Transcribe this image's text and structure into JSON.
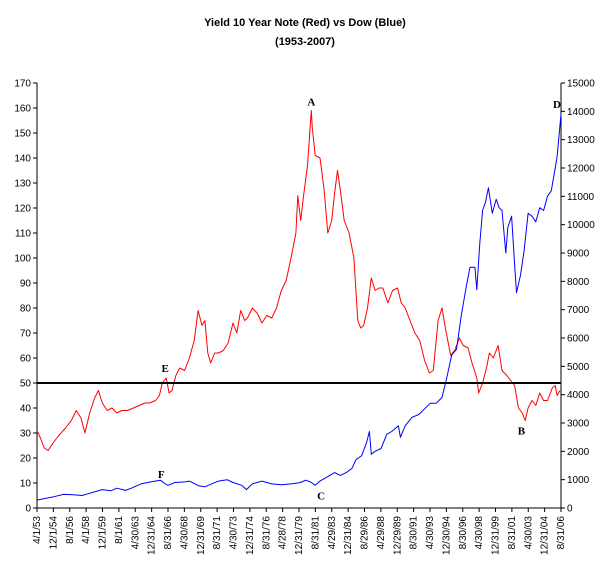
{
  "chart_data": {
    "type": "line",
    "title": "Yield 10 Year Note (Red) vs Dow (Blue)",
    "subtitle": "(1953-2007)",
    "grid": false,
    "legend": "none",
    "x_tick_labels": [
      "4/1/53",
      "12/1/54",
      "8/1/56",
      "4/1/58",
      "12/1/59",
      "8/1/61",
      "4/30/63",
      "12/31/64",
      "8/31/66",
      "4/30/68",
      "12/31/69",
      "8/31/71",
      "4/30/73",
      "12/31/74",
      "8/31/76",
      "4/28/78",
      "12/31/79",
      "8/31/81",
      "4/29/83",
      "12/31/84",
      "8/29/86",
      "4/29/88",
      "12/29/89",
      "8/30/91",
      "4/30/93",
      "12/30/94",
      "8/30/96",
      "4/30/98",
      "12/31/99",
      "8/31/01",
      "4/30/03",
      "12/31/04",
      "8/31/06"
    ],
    "y_left": {
      "min": 0,
      "max": 170,
      "step": 10
    },
    "y_right": {
      "min": 0,
      "max": 15000,
      "step": 1000
    },
    "reference_line": {
      "axis": "left",
      "value": 50,
      "color": "#000000"
    },
    "series": [
      {
        "color": "#ff0000",
        "axis": "left",
        "x": [
          1953.25,
          1953.6,
          1954.0,
          1954.4,
          1954.9,
          1955.5,
          1956.2,
          1956.8,
          1957.3,
          1957.8,
          1958.2,
          1958.7,
          1959.2,
          1959.6,
          1960.0,
          1960.5,
          1961.0,
          1961.5,
          1962.0,
          1962.6,
          1963.2,
          1963.8,
          1964.4,
          1964.9,
          1965.5,
          1965.9,
          1966.2,
          1966.6,
          1966.9,
          1967.2,
          1967.6,
          1968.0,
          1968.5,
          1969.0,
          1969.5,
          1969.9,
          1970.3,
          1970.6,
          1970.9,
          1971.2,
          1971.6,
          1972.0,
          1972.5,
          1973.0,
          1973.5,
          1973.9,
          1974.3,
          1974.7,
          1975.0,
          1975.5,
          1976.0,
          1976.5,
          1977.0,
          1977.5,
          1978.0,
          1978.5,
          1979.0,
          1979.5,
          1980.0,
          1980.2,
          1980.5,
          1980.8,
          1981.2,
          1981.6,
          1981.7,
          1982.0,
          1982.5,
          1982.9,
          1983.3,
          1983.7,
          1984.0,
          1984.3,
          1984.6,
          1985.0,
          1985.5,
          1986.0,
          1986.4,
          1986.7,
          1987.0,
          1987.4,
          1987.8,
          1988.2,
          1988.6,
          1989.0,
          1989.5,
          1990.0,
          1990.5,
          1990.9,
          1991.3,
          1991.8,
          1992.3,
          1992.8,
          1993.3,
          1993.8,
          1994.2,
          1994.7,
          1995.1,
          1995.5,
          1996.0,
          1996.4,
          1996.9,
          1997.3,
          1997.8,
          1998.2,
          1998.7,
          1998.9,
          1999.3,
          1999.7,
          2000.0,
          2000.4,
          2000.9,
          2001.3,
          2001.8,
          2002.2,
          2002.6,
          2003.0,
          2003.4,
          2003.7,
          2004.0,
          2004.4,
          2004.8,
          2005.2,
          2005.6,
          2006.0,
          2006.5,
          2006.8,
          2007.0,
          2007.3
        ],
        "values": [
          31,
          28,
          24,
          23,
          26,
          29,
          32,
          35,
          39,
          36,
          30,
          38,
          44,
          47,
          42,
          39,
          40,
          38,
          39,
          39,
          40,
          41,
          42,
          42,
          43,
          45,
          50,
          52,
          46,
          47,
          53,
          56,
          55,
          60,
          67,
          79,
          73,
          75,
          62,
          58,
          62,
          62,
          63,
          66,
          74,
          70,
          79,
          75,
          76,
          80,
          78,
          74,
          77,
          76,
          80,
          87,
          91,
          100,
          110,
          125,
          115,
          125,
          137,
          159,
          152,
          141,
          140,
          128,
          110,
          115,
          126,
          135,
          127,
          115,
          110,
          100,
          75,
          72,
          73,
          80,
          92,
          87,
          88,
          88,
          82,
          87,
          88,
          82,
          80,
          75,
          70,
          67,
          59,
          54,
          55,
          75,
          80,
          71,
          61,
          63,
          68,
          65,
          64,
          58,
          52,
          46,
          50,
          56,
          62,
          60,
          65,
          55,
          53,
          51,
          49,
          40,
          38,
          35,
          40,
          43,
          41,
          46,
          43,
          43,
          48,
          49,
          45,
          47
        ]
      },
      {
        "color": "#0000ff",
        "axis": "right",
        "x": [
          1953.25,
          1954.0,
          1955.0,
          1956.0,
          1957.0,
          1957.9,
          1958.5,
          1959.5,
          1960.0,
          1960.9,
          1961.5,
          1962.4,
          1963.0,
          1964.0,
          1965.0,
          1966.0,
          1966.5,
          1966.8,
          1967.5,
          1968.5,
          1969.0,
          1970.0,
          1970.6,
          1971.5,
          1972.0,
          1972.9,
          1973.5,
          1974.4,
          1974.9,
          1975.5,
          1976.5,
          1977.5,
          1978.5,
          1979.5,
          1980.5,
          1981.0,
          1981.5,
          1982.0,
          1982.5,
          1982.9,
          1983.5,
          1984.0,
          1984.6,
          1985.2,
          1985.8,
          1986.2,
          1986.8,
          1987.3,
          1987.6,
          1987.8,
          1988.2,
          1988.8,
          1989.4,
          1989.9,
          1990.6,
          1990.8,
          1991.3,
          1992.0,
          1992.7,
          1993.3,
          1993.9,
          1994.5,
          1995.1,
          1995.6,
          1996.1,
          1996.6,
          1997.1,
          1997.6,
          1998.0,
          1998.5,
          1998.7,
          1999.0,
          1999.3,
          1999.6,
          1999.9,
          2000.3,
          2000.7,
          2001.0,
          2001.3,
          2001.7,
          2001.9,
          2002.3,
          2002.6,
          2002.8,
          2003.2,
          2003.6,
          2004.0,
          2004.4,
          2004.8,
          2005.2,
          2005.6,
          2006.0,
          2006.4,
          2006.8,
          2007.0,
          2007.4
        ],
        "values": [
          280,
          330,
          400,
          480,
          470,
          440,
          500,
          600,
          650,
          610,
          700,
          620,
          700,
          850,
          920,
          980,
          850,
          800,
          900,
          920,
          950,
          780,
          750,
          880,
          950,
          1000,
          900,
          800,
          650,
          850,
          950,
          850,
          820,
          850,
          900,
          980,
          920,
          800,
          950,
          1030,
          1150,
          1250,
          1150,
          1250,
          1400,
          1700,
          1850,
          2300,
          2700,
          1900,
          2000,
          2100,
          2600,
          2700,
          2900,
          2500,
          2900,
          3200,
          3300,
          3500,
          3700,
          3700,
          3900,
          4600,
          5400,
          5600,
          6800,
          7800,
          8500,
          8500,
          7700,
          9300,
          10500,
          10800,
          11300,
          10400,
          10900,
          10600,
          10500,
          9000,
          9900,
          10300,
          8600,
          7600,
          8200,
          9100,
          10400,
          10300,
          10100,
          10600,
          10500,
          11000,
          11200,
          12000,
          12400,
          13900
        ]
      }
    ],
    "annotations": [
      {
        "text": "A",
        "series": "left",
        "x": 1981.6,
        "y": 159
      },
      {
        "text": "B",
        "series": "left",
        "x": 2003.0,
        "y": 35
      },
      {
        "text": "C",
        "series": "right",
        "x": 1982.4,
        "y": 800
      },
      {
        "text": "D",
        "series": "right",
        "x": 2007.4,
        "y": 13900
      },
      {
        "text": "E",
        "series": "left",
        "x": 1966.5,
        "y": 52
      },
      {
        "text": "F",
        "series": "right",
        "x": 1966.5,
        "y": 850
      }
    ]
  }
}
